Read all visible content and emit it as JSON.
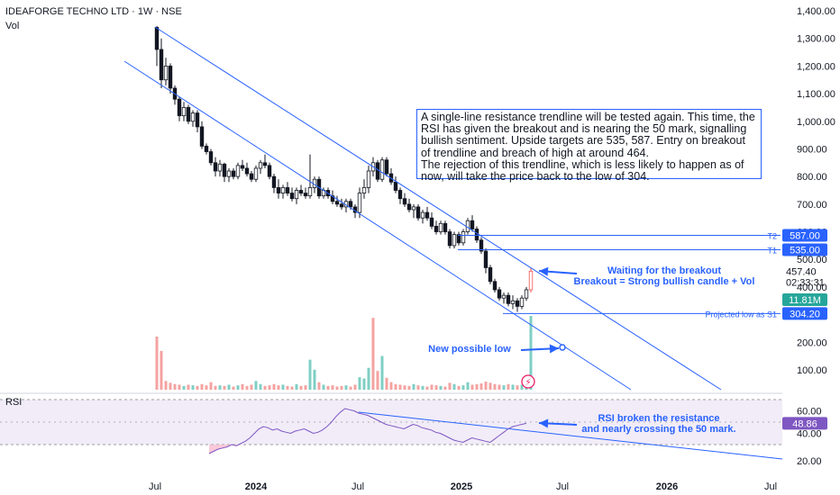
{
  "header": {
    "title": "IDEAFORGE TECHNO LTD · 1W · NSE",
    "vol_label": "Vol"
  },
  "rsi_panel": {
    "label": "RSI"
  },
  "price_axis": {
    "ticks": [
      "1,400.00",
      "1,300.00",
      "1,200.00",
      "1,100.00",
      "1,000.00",
      "900.00",
      "800.00",
      "700.00",
      "600.00",
      "500.00",
      "400.00",
      "300.00",
      "200.00",
      "100.00"
    ],
    "current_price": "457.40",
    "countdown": "02:33:31",
    "volume_badge": "11.81M",
    "rsi_ticks": [
      "60.00",
      "40.00",
      "20.00"
    ],
    "rsi_badge": "48.86"
  },
  "time_axis": {
    "labels": [
      "Jul",
      "2024",
      "Jul",
      "2025",
      "Jul",
      "2026",
      "Jul"
    ]
  },
  "levels": [
    {
      "tag": "T2",
      "value": "587.00",
      "price": 587,
      "color": "#2962ff"
    },
    {
      "tag": "T1",
      "value": "535.00",
      "price": 535,
      "color": "#2962ff"
    },
    {
      "tag": "Projected low as S1",
      "value": "304.20",
      "price": 304.2,
      "color": "#2962ff"
    }
  ],
  "annotations": {
    "main_note": [
      "A single-line resistance trendline will be tested again. This time, the",
      "RSI has given the breakout and is nearing the 50 mark, signalling",
      "bullish sentiment. Upside targets are 535, 587. Entry on breakout",
      "of trendline and breach of high at around 464.",
      "The rejection of this trendline, which is less likely to happen as of",
      "now, will take the price back to the low of 304."
    ],
    "breakout_1": "Waiting for the breakout",
    "breakout_2": "Breakout = Strong bullish candle + Vol",
    "new_low": "New possible low",
    "rsi_1": "RSI broken the resistance",
    "rsi_2": "and nearly crossing the 50 mark."
  },
  "colors": {
    "up": "#26a69a",
    "down": "#ef5350",
    "vol_up": "#7fcfc4",
    "vol_down": "#f4a3a1",
    "accent": "#2962ff",
    "rsi": "#7e57c2"
  },
  "chart_data": {
    "type": "candlestick",
    "title": "IDEAFORGE TECHNO LTD · 1W · NSE",
    "x_labels": [
      "Jul",
      "2024",
      "Jul",
      "2025",
      "Jul",
      "2026",
      "Jul"
    ],
    "ylim": [
      80,
      1420
    ],
    "y_scale": "linear",
    "price_series": [
      [
        1340,
        1345,
        1200,
        1260
      ],
      [
        1260,
        1300,
        1120,
        1150
      ],
      [
        1150,
        1230,
        1130,
        1200
      ],
      [
        1200,
        1210,
        1100,
        1120
      ],
      [
        1120,
        1130,
        1060,
        1080
      ],
      [
        1080,
        1090,
        1000,
        1020
      ],
      [
        1020,
        1070,
        1000,
        1050
      ],
      [
        1050,
        1060,
        990,
        1000
      ],
      [
        1000,
        1040,
        980,
        1030
      ],
      [
        1030,
        1040,
        960,
        980
      ],
      [
        980,
        1000,
        900,
        910
      ],
      [
        910,
        920,
        880,
        890
      ],
      [
        890,
        900,
        840,
        850
      ],
      [
        850,
        870,
        800,
        820
      ],
      [
        820,
        860,
        800,
        845
      ],
      [
        845,
        850,
        780,
        800
      ],
      [
        800,
        830,
        780,
        820
      ],
      [
        820,
        830,
        790,
        800
      ],
      [
        800,
        850,
        790,
        840
      ],
      [
        840,
        860,
        820,
        830
      ],
      [
        830,
        850,
        800,
        810
      ],
      [
        810,
        820,
        780,
        790
      ],
      [
        790,
        840,
        780,
        830
      ],
      [
        830,
        860,
        810,
        850
      ],
      [
        850,
        880,
        830,
        840
      ],
      [
        840,
        850,
        790,
        800
      ],
      [
        800,
        810,
        740,
        760
      ],
      [
        760,
        790,
        720,
        740
      ],
      [
        740,
        770,
        720,
        760
      ],
      [
        760,
        780,
        730,
        740
      ],
      [
        740,
        760,
        710,
        720
      ],
      [
        720,
        760,
        700,
        750
      ],
      [
        750,
        770,
        730,
        740
      ],
      [
        740,
        760,
        720,
        730
      ],
      [
        730,
        880,
        720,
        760
      ],
      [
        760,
        800,
        740,
        790
      ],
      [
        790,
        800,
        720,
        730
      ],
      [
        730,
        760,
        720,
        750
      ],
      [
        750,
        760,
        720,
        730
      ],
      [
        730,
        750,
        700,
        710
      ],
      [
        710,
        730,
        690,
        700
      ],
      [
        700,
        720,
        680,
        690
      ],
      [
        690,
        720,
        670,
        710
      ],
      [
        710,
        720,
        680,
        690
      ],
      [
        690,
        700,
        650,
        670
      ],
      [
        670,
        760,
        650,
        740
      ],
      [
        740,
        790,
        720,
        760
      ],
      [
        760,
        840,
        740,
        820
      ],
      [
        820,
        870,
        800,
        850
      ],
      [
        850,
        860,
        780,
        790
      ],
      [
        790,
        870,
        780,
        860
      ],
      [
        860,
        870,
        800,
        810
      ],
      [
        810,
        830,
        770,
        780
      ],
      [
        780,
        800,
        740,
        750
      ],
      [
        750,
        760,
        700,
        720
      ],
      [
        720,
        740,
        690,
        700
      ],
      [
        700,
        720,
        670,
        680
      ],
      [
        680,
        700,
        650,
        690
      ],
      [
        690,
        700,
        640,
        650
      ],
      [
        650,
        680,
        630,
        670
      ],
      [
        670,
        690,
        640,
        650
      ],
      [
        650,
        670,
        610,
        620
      ],
      [
        620,
        640,
        590,
        600
      ],
      [
        600,
        640,
        590,
        630
      ],
      [
        630,
        640,
        590,
        600
      ],
      [
        600,
        610,
        540,
        550
      ],
      [
        550,
        600,
        540,
        590
      ],
      [
        590,
        600,
        550,
        560
      ],
      [
        560,
        610,
        550,
        600
      ],
      [
        600,
        650,
        590,
        640
      ],
      [
        640,
        660,
        600,
        610
      ],
      [
        610,
        620,
        560,
        570
      ],
      [
        570,
        580,
        520,
        530
      ],
      [
        530,
        540,
        450,
        470
      ],
      [
        470,
        480,
        410,
        420
      ],
      [
        420,
        430,
        380,
        390
      ],
      [
        390,
        400,
        350,
        360
      ],
      [
        360,
        380,
        340,
        370
      ],
      [
        370,
        380,
        330,
        340
      ],
      [
        340,
        370,
        320,
        350
      ],
      [
        350,
        360,
        310,
        330
      ],
      [
        330,
        370,
        320,
        360
      ],
      [
        360,
        400,
        350,
        390
      ],
      [
        390,
        470,
        380,
        457.4
      ]
    ],
    "volume": [
      [
        8.5,
        0
      ],
      [
        6.2,
        0
      ],
      [
        1.4,
        0
      ],
      [
        1.1,
        0
      ],
      [
        0.9,
        0
      ],
      [
        0.8,
        0
      ],
      [
        0.6,
        1
      ],
      [
        0.8,
        0
      ],
      [
        0.7,
        1
      ],
      [
        0.6,
        0
      ],
      [
        0.9,
        0
      ],
      [
        0.7,
        0
      ],
      [
        1.2,
        0
      ],
      [
        0.6,
        0
      ],
      [
        0.7,
        1
      ],
      [
        0.6,
        0
      ],
      [
        0.8,
        1
      ],
      [
        0.5,
        0
      ],
      [
        0.7,
        1
      ],
      [
        0.9,
        0
      ],
      [
        0.6,
        0
      ],
      [
        0.8,
        0
      ],
      [
        1.4,
        1
      ],
      [
        0.9,
        1
      ],
      [
        0.6,
        0
      ],
      [
        0.7,
        0
      ],
      [
        0.9,
        0
      ],
      [
        0.7,
        0
      ],
      [
        0.8,
        1
      ],
      [
        0.6,
        0
      ],
      [
        0.5,
        0
      ],
      [
        0.9,
        1
      ],
      [
        0.6,
        0
      ],
      [
        0.7,
        0
      ],
      [
        4.8,
        1
      ],
      [
        3.2,
        1
      ],
      [
        1.2,
        0
      ],
      [
        0.8,
        1
      ],
      [
        0.6,
        0
      ],
      [
        0.7,
        0
      ],
      [
        0.5,
        0
      ],
      [
        0.6,
        0
      ],
      [
        0.7,
        1
      ],
      [
        0.5,
        0
      ],
      [
        0.8,
        0
      ],
      [
        2.0,
        1
      ],
      [
        1.8,
        1
      ],
      [
        3.5,
        1
      ],
      [
        11.5,
        0
      ],
      [
        3.0,
        0
      ],
      [
        5.4,
        1
      ],
      [
        1.9,
        0
      ],
      [
        1.2,
        0
      ],
      [
        0.9,
        0
      ],
      [
        0.8,
        0
      ],
      [
        0.7,
        0
      ],
      [
        0.6,
        0
      ],
      [
        0.9,
        1
      ],
      [
        0.7,
        0
      ],
      [
        0.6,
        1
      ],
      [
        0.5,
        0
      ],
      [
        0.8,
        0
      ],
      [
        0.7,
        0
      ],
      [
        0.6,
        1
      ],
      [
        0.5,
        0
      ],
      [
        1.1,
        0
      ],
      [
        0.9,
        1
      ],
      [
        0.6,
        0
      ],
      [
        0.7,
        1
      ],
      [
        1.2,
        1
      ],
      [
        0.8,
        0
      ],
      [
        0.9,
        0
      ],
      [
        1.0,
        0
      ],
      [
        1.3,
        0
      ],
      [
        1.1,
        0
      ],
      [
        0.9,
        0
      ],
      [
        0.8,
        0
      ],
      [
        0.7,
        1
      ],
      [
        0.9,
        0
      ],
      [
        0.8,
        1
      ],
      [
        0.7,
        0
      ],
      [
        0.8,
        1
      ],
      [
        1.2,
        1
      ],
      [
        11.81,
        1
      ]
    ],
    "channel": {
      "upper": {
        "from": [
          "2023-06-26",
          1340
        ],
        "to": [
          "2025-12-01",
          120
        ]
      },
      "lower": {
        "from": [
          "2023-06-26",
          1200
        ],
        "to": [
          "2025-10-01",
          120
        ]
      }
    },
    "rsi": {
      "ylim": [
        10,
        70
      ],
      "upper_band": 70,
      "lower_band": 30,
      "mid": 50,
      "values": [
        22,
        24,
        26,
        27,
        28,
        30,
        29,
        31,
        33,
        36,
        40,
        44,
        46,
        45,
        43,
        44,
        42,
        41,
        40,
        42,
        43,
        44,
        42,
        40,
        41,
        43,
        46,
        50,
        55,
        59,
        62,
        61,
        60,
        58,
        57,
        56,
        54,
        52,
        50,
        48,
        47,
        46,
        45,
        44,
        46,
        48,
        47,
        45,
        44,
        43,
        41,
        40,
        38,
        36,
        34,
        33,
        32,
        34,
        36,
        35,
        34,
        33,
        32,
        35,
        38,
        41,
        44,
        46,
        47,
        48,
        48.86
      ]
    }
  }
}
